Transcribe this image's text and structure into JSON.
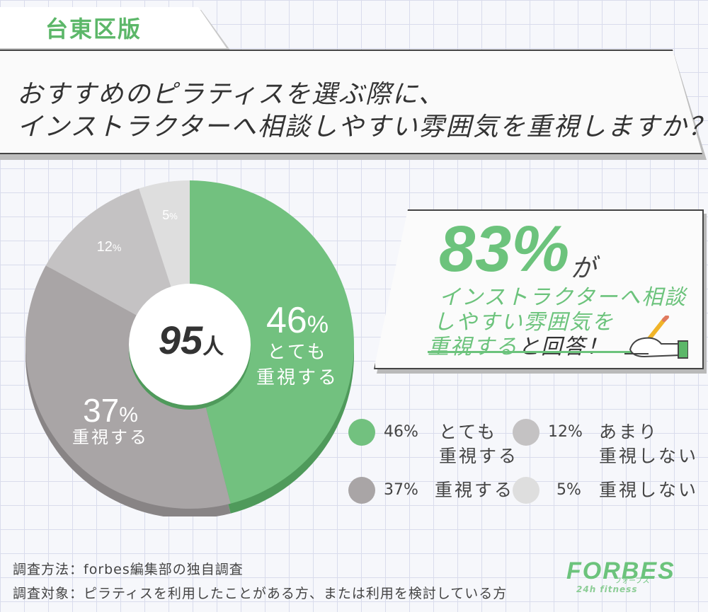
{
  "tag": {
    "label": "台東区版"
  },
  "question": {
    "line1": "おすすめのピラティスを選ぶ際に、",
    "line2": "インストラクターへ相談しやすい雰囲気を重視しますか？"
  },
  "center": {
    "count": "95",
    "unit": "人"
  },
  "callout": {
    "pct": "83%",
    "ga": "が",
    "line1": "インストラクターへ相談",
    "line2": "しやすい雰囲気を",
    "line3_green": "重視する",
    "line3_dark": "と回答！"
  },
  "chart_data": {
    "type": "pie",
    "total_respondents": 95,
    "slices": [
      {
        "name": "とても重視する",
        "value": 46,
        "label": "46%",
        "color": "#72c17f",
        "edge": "#4f9a5b"
      },
      {
        "name": "重視する",
        "value": 37,
        "label": "37%",
        "color": "#a9a5a6",
        "edge": "#888485"
      },
      {
        "name": "あまり重視しない",
        "value": 12,
        "label": "12%",
        "color": "#c4c2c3",
        "edge": "#a3a1a2"
      },
      {
        "name": "重視しない",
        "value": 5,
        "label": "5%",
        "color": "#dedede",
        "edge": "#bdbdbd"
      }
    ],
    "slice_text": {
      "s0_pct": "46",
      "s0_sign": "%",
      "s0_l1": "とても",
      "s0_l2": "重視する",
      "s1_pct": "37",
      "s1_sign": "%",
      "s1_l1": "重視する",
      "s2_pct": "12",
      "s2_sign": "%",
      "s3_pct": "5",
      "s3_sign": "%"
    }
  },
  "legend": [
    {
      "pct": "46%",
      "line1": "とても",
      "line2": "重視する",
      "color": "#72c17f"
    },
    {
      "pct": "12%",
      "line1": "あまり",
      "line2": "重視しない",
      "color": "#c4c2c3"
    },
    {
      "pct": "37%",
      "line1": "重視する",
      "line2": "",
      "color": "#a9a5a6"
    },
    {
      "pct": "5%",
      "line1": "重視しない",
      "line2": "",
      "color": "#dedede"
    }
  ],
  "footer": {
    "method": "調査方法：forbes編集部の独自調査",
    "target": "調査対象：ピラティスを利用したことがある方、または利用を検討している方"
  },
  "logo": {
    "main": "FORBES",
    "kana": "フォーブス",
    "sub": "24h fitness"
  }
}
